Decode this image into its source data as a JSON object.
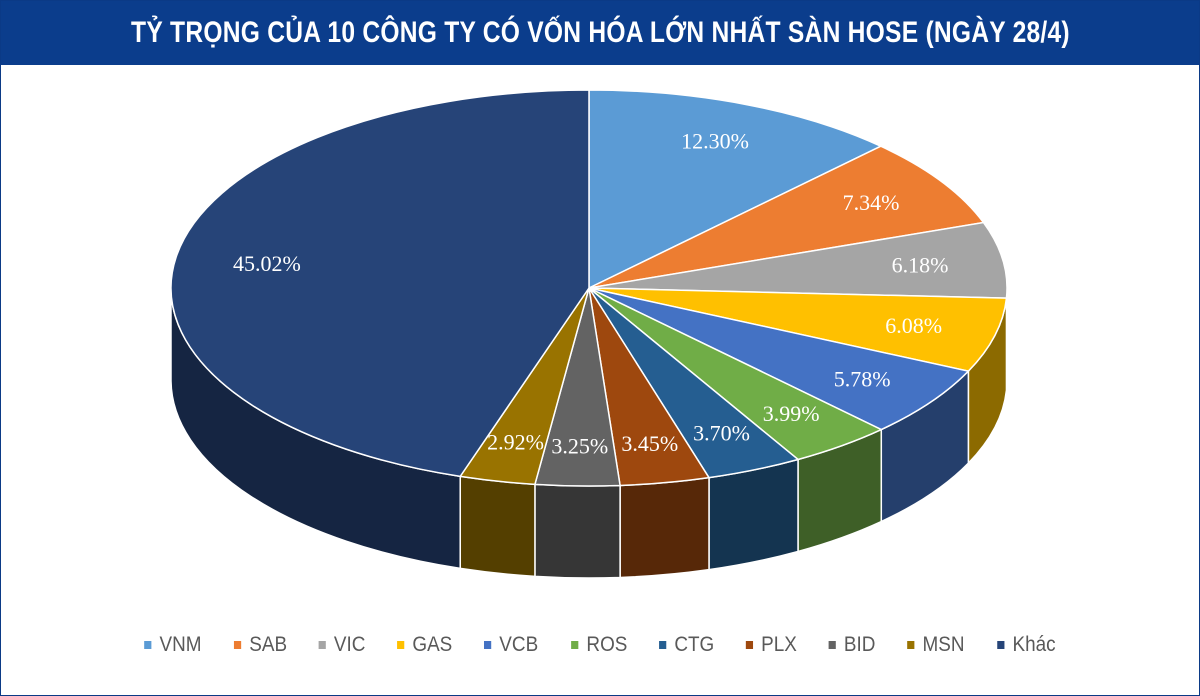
{
  "chart_data": {
    "type": "pie",
    "style": "3d",
    "title": "TỶ TRỌNG CỦA 10 CÔNG TY CÓ VỐN HÓA LỚN NHẤT SÀN HOSE (NGÀY 28/4)",
    "legend_position": "bottom",
    "slices": [
      {
        "name": "VNM",
        "value": 12.3,
        "label": "12.30%",
        "color": "#5B9BD5"
      },
      {
        "name": "SAB",
        "value": 7.34,
        "label": "7.34%",
        "color": "#ED7D31"
      },
      {
        "name": "VIC",
        "value": 6.18,
        "label": "6.18%",
        "color": "#A5A5A5"
      },
      {
        "name": "GAS",
        "value": 6.08,
        "label": "6.08%",
        "color": "#FFC000"
      },
      {
        "name": "VCB",
        "value": 5.78,
        "label": "5.78%",
        "color": "#4472C4"
      },
      {
        "name": "ROS",
        "value": 3.99,
        "label": "3.99%",
        "color": "#70AD47"
      },
      {
        "name": "CTG",
        "value": 3.7,
        "label": "3.70%",
        "color": "#255E91"
      },
      {
        "name": "PLX",
        "value": 3.45,
        "label": "3.45%",
        "color": "#9E480E"
      },
      {
        "name": "BID",
        "value": 3.25,
        "label": "3.25%",
        "color": "#636363"
      },
      {
        "name": "MSN",
        "value": 2.92,
        "label": "2.92%",
        "color": "#997300"
      },
      {
        "name": "Khác",
        "value": 45.02,
        "label": "45.02%",
        "color": "#264478"
      }
    ]
  }
}
